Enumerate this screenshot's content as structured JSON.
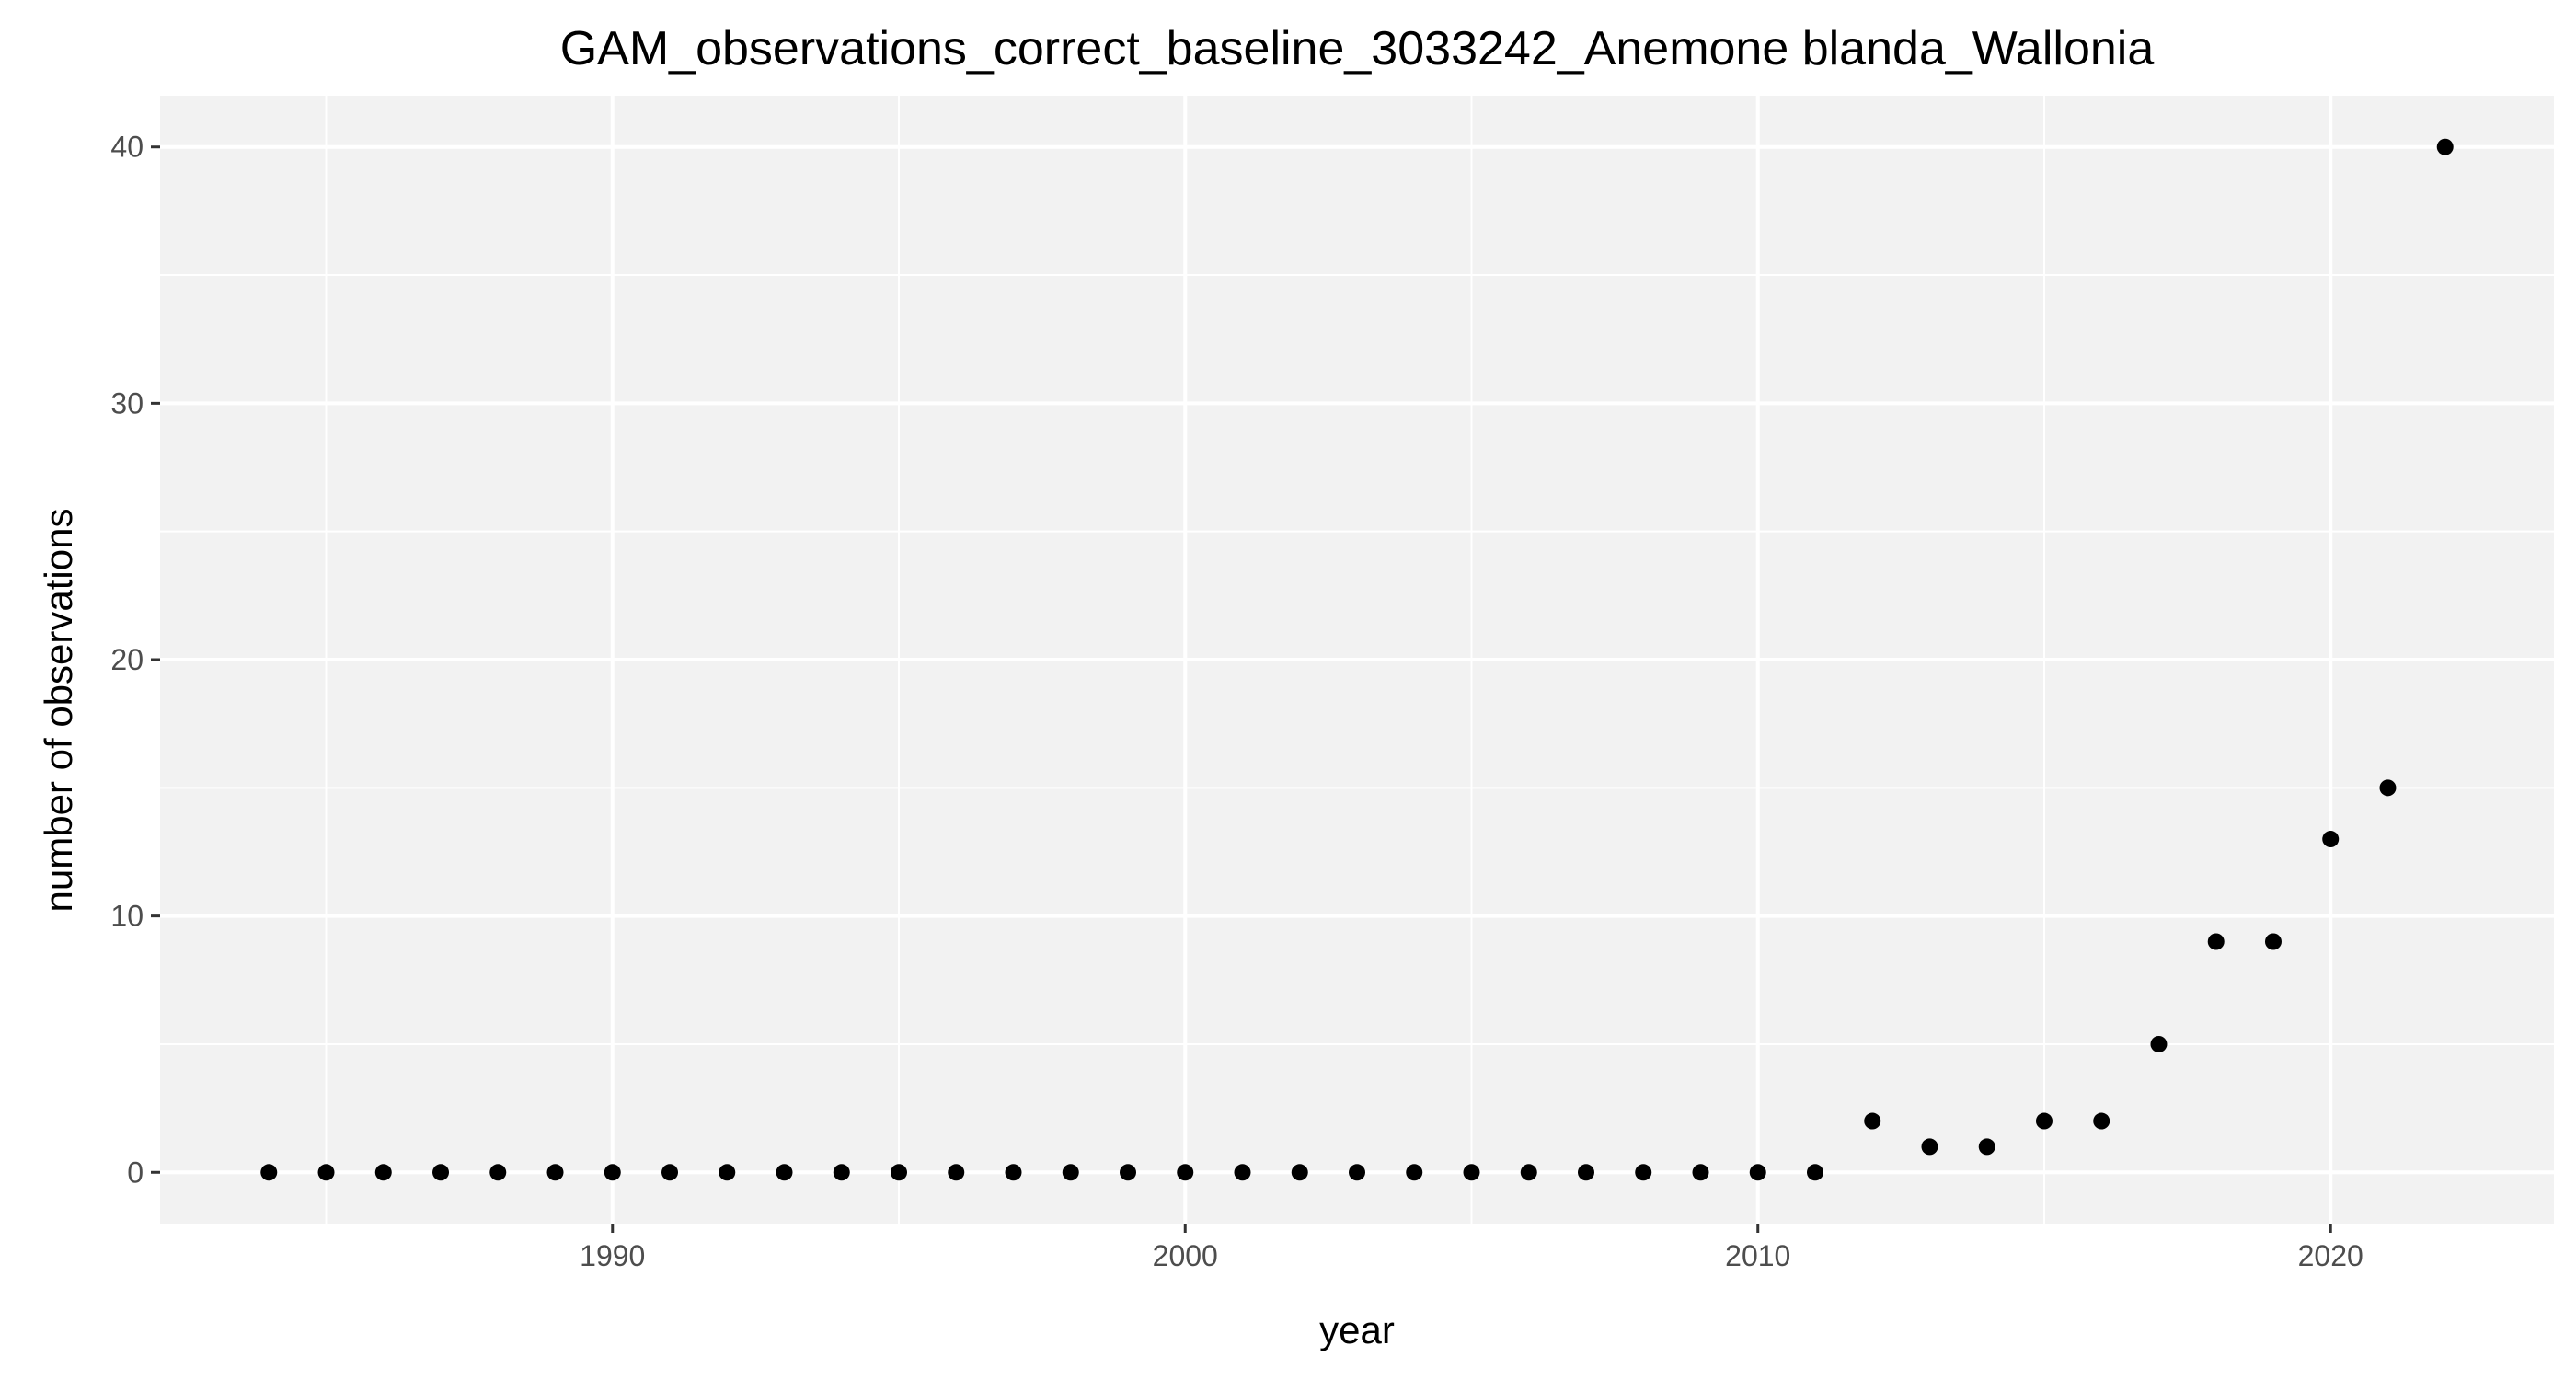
{
  "chart_data": {
    "type": "scatter",
    "title": "GAM_observations_correct_baseline_3033242_Anemone blanda_Wallonia",
    "xlabel": "year",
    "ylabel": "number of observations",
    "xlim": [
      1982.1,
      2023.9
    ],
    "ylim": [
      -2,
      42
    ],
    "x_ticks": [
      1990,
      2000,
      2010,
      2020
    ],
    "x_minor_ticks": [
      1985,
      1995,
      2005,
      2015
    ],
    "y_ticks": [
      0,
      10,
      20,
      30,
      40
    ],
    "y_minor_ticks": [
      5,
      15,
      25,
      35
    ],
    "grid": true,
    "legend": "none",
    "panel_color": "#f2f2f2",
    "grid_color": "#ffffff",
    "point_color": "#000000",
    "points": [
      {
        "x": 1984,
        "y": 0
      },
      {
        "x": 1985,
        "y": 0
      },
      {
        "x": 1986,
        "y": 0
      },
      {
        "x": 1987,
        "y": 0
      },
      {
        "x": 1988,
        "y": 0
      },
      {
        "x": 1989,
        "y": 0
      },
      {
        "x": 1990,
        "y": 0
      },
      {
        "x": 1991,
        "y": 0
      },
      {
        "x": 1992,
        "y": 0
      },
      {
        "x": 1993,
        "y": 0
      },
      {
        "x": 1994,
        "y": 0
      },
      {
        "x": 1995,
        "y": 0
      },
      {
        "x": 1996,
        "y": 0
      },
      {
        "x": 1997,
        "y": 0
      },
      {
        "x": 1998,
        "y": 0
      },
      {
        "x": 1999,
        "y": 0
      },
      {
        "x": 2000,
        "y": 0
      },
      {
        "x": 2001,
        "y": 0
      },
      {
        "x": 2002,
        "y": 0
      },
      {
        "x": 2003,
        "y": 0
      },
      {
        "x": 2004,
        "y": 0
      },
      {
        "x": 2005,
        "y": 0
      },
      {
        "x": 2006,
        "y": 0
      },
      {
        "x": 2007,
        "y": 0
      },
      {
        "x": 2008,
        "y": 0
      },
      {
        "x": 2009,
        "y": 0
      },
      {
        "x": 2010,
        "y": 0
      },
      {
        "x": 2011,
        "y": 0
      },
      {
        "x": 2012,
        "y": 2
      },
      {
        "x": 2013,
        "y": 1
      },
      {
        "x": 2014,
        "y": 1
      },
      {
        "x": 2015,
        "y": 2
      },
      {
        "x": 2016,
        "y": 2
      },
      {
        "x": 2017,
        "y": 5
      },
      {
        "x": 2018,
        "y": 9
      },
      {
        "x": 2019,
        "y": 9
      },
      {
        "x": 2020,
        "y": 13
      },
      {
        "x": 2021,
        "y": 15
      },
      {
        "x": 2022,
        "y": 40
      }
    ]
  }
}
